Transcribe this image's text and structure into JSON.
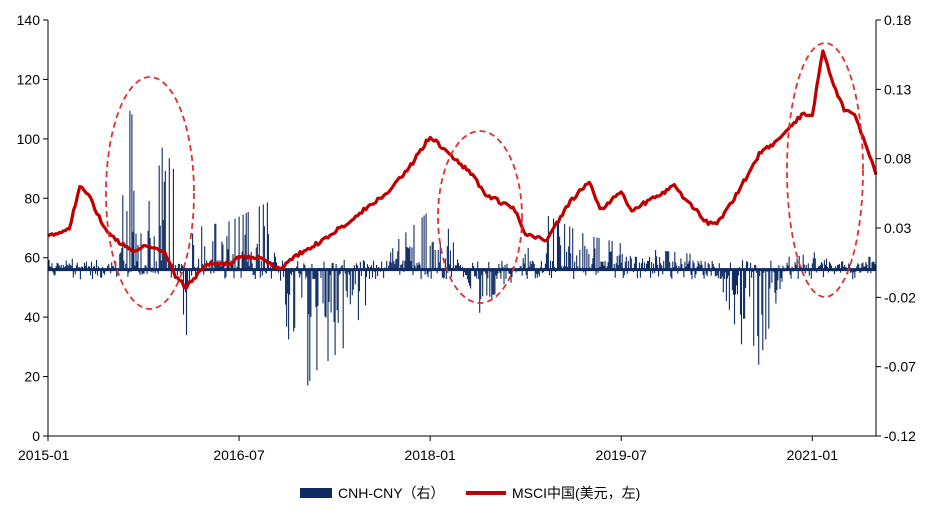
{
  "chart_data": {
    "type": "bar+line",
    "grid": false,
    "legend_position": "bottom-center",
    "x_ticks": [
      "2015-01",
      "2016-07",
      "2018-01",
      "2019-07",
      "2021-01"
    ],
    "x_range": [
      "2015-01",
      "2021-07"
    ],
    "y_left": {
      "range": [
        0,
        140
      ],
      "ticks": [
        "0",
        "20",
        "40",
        "60",
        "80",
        "100",
        "120",
        "140"
      ]
    },
    "y_right": {
      "range": [
        -0.12,
        0.18
      ],
      "ticks": [
        "-0.12",
        "-0.07",
        "-0.02",
        "0.03",
        "0.08",
        "0.13",
        "0.18"
      ]
    },
    "series": [
      {
        "name": "CNH-CNY（右）",
        "kind": "bar",
        "axis": "right",
        "color": "#0d2a63",
        "note_values": "estimated daily spread, right axis units",
        "keyframes": [
          {
            "t": 0.0,
            "v": 0.002
          },
          {
            "t": 0.03,
            "v": 0.008
          },
          {
            "t": 0.06,
            "v": 0.004
          },
          {
            "t": 0.085,
            "v": 0.006
          },
          {
            "t": 0.095,
            "v": 0.095
          },
          {
            "t": 0.1,
            "v": 0.12
          },
          {
            "t": 0.105,
            "v": 0.09
          },
          {
            "t": 0.115,
            "v": 0.04
          },
          {
            "t": 0.13,
            "v": 0.06
          },
          {
            "t": 0.14,
            "v": 0.095
          },
          {
            "t": 0.148,
            "v": 0.145
          },
          {
            "t": 0.152,
            "v": 0.06
          },
          {
            "t": 0.16,
            "v": -0.008
          },
          {
            "t": 0.165,
            "v": -0.07
          },
          {
            "t": 0.175,
            "v": 0.03
          },
          {
            "t": 0.22,
            "v": 0.035
          },
          {
            "t": 0.27,
            "v": 0.05
          },
          {
            "t": 0.295,
            "v": -0.11
          },
          {
            "t": 0.32,
            "v": -0.075
          },
          {
            "t": 0.36,
            "v": -0.055
          },
          {
            "t": 0.42,
            "v": 0.02
          },
          {
            "t": 0.465,
            "v": 0.045
          },
          {
            "t": 0.48,
            "v": 0.035
          },
          {
            "t": 0.53,
            "v": -0.045
          },
          {
            "t": 0.6,
            "v": 0.04
          },
          {
            "t": 0.65,
            "v": 0.025
          },
          {
            "t": 0.72,
            "v": 0.015
          },
          {
            "t": 0.8,
            "v": 0.01
          },
          {
            "t": 0.853,
            "v": -0.08
          },
          {
            "t": 0.9,
            "v": 0.02
          },
          {
            "t": 0.95,
            "v": 0.005
          },
          {
            "t": 1.0,
            "v": 0.01
          }
        ]
      },
      {
        "name": "MSCI中国(美元，左)",
        "kind": "line",
        "axis": "left",
        "color": "#c00000",
        "x": [
          "2015-01",
          "2015-03",
          "2015-04",
          "2015-05",
          "2015-06",
          "2015-07",
          "2015-09",
          "2015-10",
          "2015-12",
          "2016-01",
          "2016-02",
          "2016-04",
          "2016-06",
          "2016-07",
          "2016-09",
          "2016-11",
          "2016-12",
          "2017-03",
          "2017-06",
          "2017-09",
          "2017-11",
          "2018-01",
          "2018-03",
          "2018-05",
          "2018-06",
          "2018-09",
          "2018-10",
          "2018-12",
          "2019-02",
          "2019-04",
          "2019-05",
          "2019-07",
          "2019-08",
          "2019-10",
          "2019-12",
          "2020-01",
          "2020-03",
          "2020-04",
          "2020-06",
          "2020-08",
          "2020-10",
          "2020-12",
          "2021-01",
          "2021-02",
          "2021-03",
          "2021-04",
          "2021-05",
          "2021-06",
          "2021-07"
        ],
        "y": [
          67,
          70,
          84,
          80,
          72,
          67,
          62,
          64,
          62,
          54,
          50,
          58,
          58,
          60,
          60,
          56,
          60,
          66,
          74,
          82,
          90,
          101,
          94,
          88,
          82,
          76,
          68,
          66,
          78,
          86,
          76,
          82,
          76,
          80,
          84,
          80,
          72,
          71,
          82,
          95,
          100,
          108,
          108,
          130,
          118,
          110,
          108,
          98,
          88
        ]
      }
    ],
    "annotations": [
      {
        "type": "dashed-ellipse",
        "color": "#e03030",
        "around": "2015-06 to 2016-01 spike"
      },
      {
        "type": "dashed-ellipse",
        "color": "#e03030",
        "around": "2018-01 to 2018-09"
      },
      {
        "type": "dashed-ellipse",
        "color": "#e03030",
        "around": "2021-01 to 2021-07"
      }
    ]
  }
}
